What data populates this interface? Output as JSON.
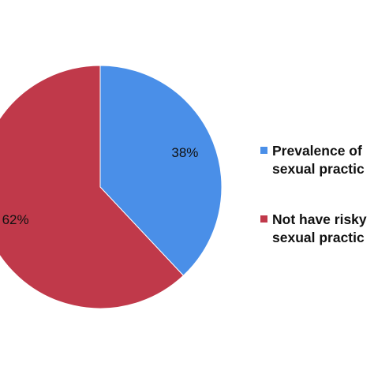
{
  "chart_data": {
    "type": "pie",
    "series": [
      {
        "name": "Prevalence of\nsexual practic",
        "color": "#4a8fe8"
      },
      {
        "name": "Not have risky\nsexual practic",
        "color": "#c0394a"
      }
    ],
    "values": [
      38,
      62
    ],
    "value_labels": [
      "38%",
      "62%"
    ],
    "start_angle": 0,
    "direction": "clockwise"
  }
}
